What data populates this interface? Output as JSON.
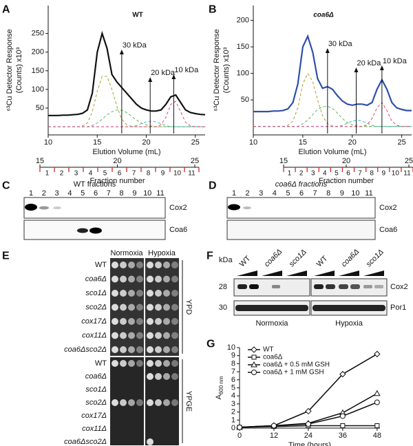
{
  "panel_labels": [
    "A",
    "B",
    "C",
    "D",
    "E",
    "F",
    "G"
  ],
  "chart_data": [
    {
      "type": "line",
      "title": "WT",
      "xlabel": "Elution Volume (mL)",
      "ylabel": [
        "⁶³Cu Detector Response",
        "(Counts) x10³"
      ],
      "x": [
        10,
        10.5,
        11,
        11.5,
        12,
        12.5,
        13,
        13.5,
        14,
        14.5,
        15,
        15.5,
        16,
        16.5,
        17,
        17.5,
        18,
        18.5,
        19,
        19.5,
        20,
        20.5,
        21,
        21.5,
        22,
        22.5,
        23,
        23.5,
        24,
        24.5,
        25,
        25.5,
        26
      ],
      "xlim": [
        10,
        26
      ],
      "xticks": [
        10,
        15,
        20,
        25
      ],
      "ylim": [
        -22,
        325
      ],
      "yticks": [
        50,
        100,
        150,
        200,
        250
      ],
      "series": [
        {
          "color": "#111111",
          "style": "solid",
          "values": [
            30,
            30,
            30,
            31,
            31,
            32,
            33,
            36,
            45,
            90,
            200,
            250,
            210,
            140,
            120,
            105,
            90,
            75,
            60,
            50,
            45,
            42,
            42,
            45,
            60,
            80,
            85,
            65,
            45,
            38,
            35,
            33,
            32
          ]
        },
        {
          "color": "#a9a032",
          "style": "dashed",
          "values": [
            0,
            0,
            0,
            0,
            0,
            0,
            0,
            2,
            10,
            40,
            95,
            135,
            135,
            100,
            55,
            20,
            5,
            1,
            0,
            0,
            0,
            0,
            0,
            0,
            0,
            0,
            0,
            0,
            0,
            0,
            0,
            0,
            0
          ]
        },
        {
          "color": "#5cb85c",
          "style": "dashed",
          "values": [
            0,
            0,
            0,
            0,
            0,
            0,
            0,
            0,
            0,
            3,
            10,
            20,
            32,
            40,
            45,
            44,
            38,
            28,
            18,
            10,
            5,
            2,
            0,
            0,
            0,
            0,
            0,
            0,
            0,
            0,
            0,
            0,
            0
          ]
        },
        {
          "color": "#3fb7d0",
          "style": "dashed",
          "values": [
            0,
            0,
            0,
            0,
            0,
            0,
            0,
            0,
            0,
            0,
            0,
            0,
            0,
            0,
            0,
            0,
            0,
            0,
            3,
            8,
            13,
            15,
            13,
            8,
            3,
            0,
            0,
            0,
            0,
            0,
            0,
            0,
            0
          ]
        },
        {
          "color": "#e8437a",
          "style": "dashed",
          "values": [
            0,
            0,
            0,
            0,
            0,
            0,
            0,
            0,
            0,
            0,
            0,
            0,
            0,
            0,
            0,
            0,
            0,
            0,
            0,
            0,
            0,
            0,
            0,
            5,
            25,
            60,
            68,
            40,
            12,
            2,
            0,
            0,
            0
          ]
        }
      ],
      "annotations": [
        {
          "text": "30 kDa",
          "x": 17.5
        },
        {
          "text": "20 kDa",
          "x": 20.4
        },
        {
          "text": "10 kDa",
          "x": 22.8
        }
      ],
      "fraction_scale": {
        "ticks": [
          15,
          20,
          25
        ],
        "fractions": [
          1,
          2,
          3,
          4,
          5,
          6,
          7,
          8,
          9,
          10,
          11
        ],
        "label": "Fraction number"
      }
    },
    {
      "type": "line",
      "title": "coa6Δ",
      "xlabel": "Elution Volume (mL)",
      "ylabel": [
        "⁶³Cu Detector Response",
        "(Counts) x10³"
      ],
      "x": [
        10,
        10.5,
        11,
        11.5,
        12,
        12.5,
        13,
        13.5,
        14,
        14.5,
        15,
        15.5,
        16,
        16.5,
        17,
        17.5,
        18,
        18.5,
        19,
        19.5,
        20,
        20.5,
        21,
        21.5,
        22,
        22.5,
        23,
        23.5,
        24,
        24.5,
        25,
        25.5,
        26
      ],
      "xlim": [
        10,
        26
      ],
      "xticks": [
        10,
        15,
        20,
        25
      ],
      "ylim": [
        -16,
        228
      ],
      "yticks": [
        50,
        100,
        150,
        200
      ],
      "series": [
        {
          "color": "#2f4fa8",
          "style": "solid",
          "values": [
            28,
            28,
            28,
            28,
            29,
            29,
            30,
            33,
            45,
            80,
            150,
            170,
            140,
            90,
            72,
            75,
            70,
            58,
            48,
            42,
            40,
            42,
            42,
            40,
            45,
            70,
            88,
            70,
            45,
            35,
            32,
            30,
            30
          ]
        },
        {
          "color": "#a9a032",
          "style": "dashed",
          "values": [
            0,
            0,
            0,
            0,
            0,
            0,
            0,
            2,
            10,
            35,
            80,
            100,
            85,
            50,
            20,
            5,
            1,
            0,
            0,
            0,
            0,
            0,
            0,
            0,
            0,
            0,
            0,
            0,
            0,
            0,
            0,
            0,
            0
          ]
        },
        {
          "color": "#5cb85c",
          "style": "dashed",
          "values": [
            0,
            0,
            0,
            0,
            0,
            0,
            0,
            0,
            0,
            0,
            5,
            12,
            22,
            32,
            37,
            38,
            34,
            25,
            15,
            7,
            3,
            1,
            0,
            0,
            0,
            0,
            0,
            0,
            0,
            0,
            0,
            0,
            0
          ]
        },
        {
          "color": "#3fb7d0",
          "style": "dashed",
          "values": [
            0,
            0,
            0,
            0,
            0,
            0,
            0,
            0,
            0,
            0,
            0,
            0,
            0,
            0,
            0,
            0,
            0,
            0,
            2,
            6,
            10,
            12,
            10,
            6,
            2,
            0,
            0,
            0,
            0,
            0,
            0,
            0,
            0
          ]
        },
        {
          "color": "#e8437a",
          "style": "dashed",
          "values": [
            0,
            0,
            0,
            0,
            0,
            0,
            0,
            0,
            0,
            0,
            0,
            0,
            0,
            0,
            0,
            0,
            0,
            0,
            0,
            0,
            0,
            0,
            0,
            3,
            15,
            35,
            45,
            30,
            10,
            2,
            0,
            0,
            0
          ]
        }
      ],
      "annotations": [
        {
          "text": "30 kDa",
          "x": 17.5
        },
        {
          "text": "20 kDa",
          "x": 20.4
        },
        {
          "text": "10 kDa",
          "x": 23
        }
      ],
      "fraction_scale": {
        "ticks": [
          15,
          20,
          25
        ],
        "fractions": [
          1,
          2,
          3,
          4,
          5,
          6,
          7,
          8,
          9,
          10,
          11
        ],
        "label": "Fraction number"
      }
    },
    {
      "type": "line",
      "xlabel": "Time (hours)",
      "ylabel": "A",
      "ylabel_sub": "600 nm",
      "x": [
        0,
        12,
        24,
        36,
        48
      ],
      "xlim": [
        0,
        49
      ],
      "xticks": [
        0,
        12,
        24,
        36,
        48
      ],
      "ylim": [
        0,
        10
      ],
      "yticks": [
        0,
        1,
        2,
        3,
        4,
        5,
        6,
        7,
        8,
        9,
        10
      ],
      "legend": "upper left",
      "series": [
        {
          "name": "WT",
          "color": "#111111",
          "marker": "diamond",
          "values": [
            0.1,
            0.3,
            2.1,
            6.7,
            9.2
          ]
        },
        {
          "name": "coa6Δ",
          "color": "#111111",
          "marker": "square",
          "values": [
            0.1,
            0.2,
            0.3,
            0.3,
            0.3
          ]
        },
        {
          "name": "coa6Δ + 0.5 mM GSH",
          "color": "#111111",
          "marker": "triangle",
          "values": [
            0.1,
            0.3,
            0.6,
            1.9,
            4.3
          ]
        },
        {
          "name": "coa6Δ + 1 mM GSH",
          "color": "#111111",
          "marker": "circle",
          "values": [
            0.1,
            0.3,
            0.5,
            1.5,
            3.2
          ]
        }
      ]
    }
  ],
  "blot_c": {
    "title": "WT fractions",
    "lanes": [
      1,
      2,
      3,
      4,
      5,
      6,
      7,
      8,
      9,
      10,
      11
    ],
    "rows": [
      "Cox2",
      "Coa6"
    ]
  },
  "blot_d": {
    "title": "coa6Δ fractions",
    "lanes": [
      1,
      2,
      3,
      4,
      5,
      6,
      7,
      8,
      9,
      10,
      11
    ],
    "rows": [
      "Cox2",
      "Coa6"
    ]
  },
  "spot_assay": {
    "conditions": [
      "Normoxia",
      "Hypoxia"
    ],
    "media": [
      {
        "name": "YPD",
        "strains": [
          "WT",
          "coa6Δ",
          "sco1Δ",
          "sco2Δ",
          "cox17Δ",
          "cox11Δ",
          "coa6Δsco2Δ"
        ]
      },
      {
        "name": "YPGE",
        "strains": [
          "WT",
          "coa6Δ",
          "sco1Δ",
          "sco2Δ",
          "cox17Δ",
          "cox11Δ",
          "coa6Δsco2Δ"
        ]
      }
    ]
  },
  "western": {
    "unit": "kDa",
    "markers": [
      28,
      30
    ],
    "lanes": [
      "WT",
      "coa6Δ",
      "sco1Δ",
      "WT",
      "coa6Δ",
      "sco1Δ"
    ],
    "rows": [
      "Cox2",
      "Por1"
    ],
    "conditions": [
      "Normoxia",
      "Hypoxia"
    ]
  }
}
